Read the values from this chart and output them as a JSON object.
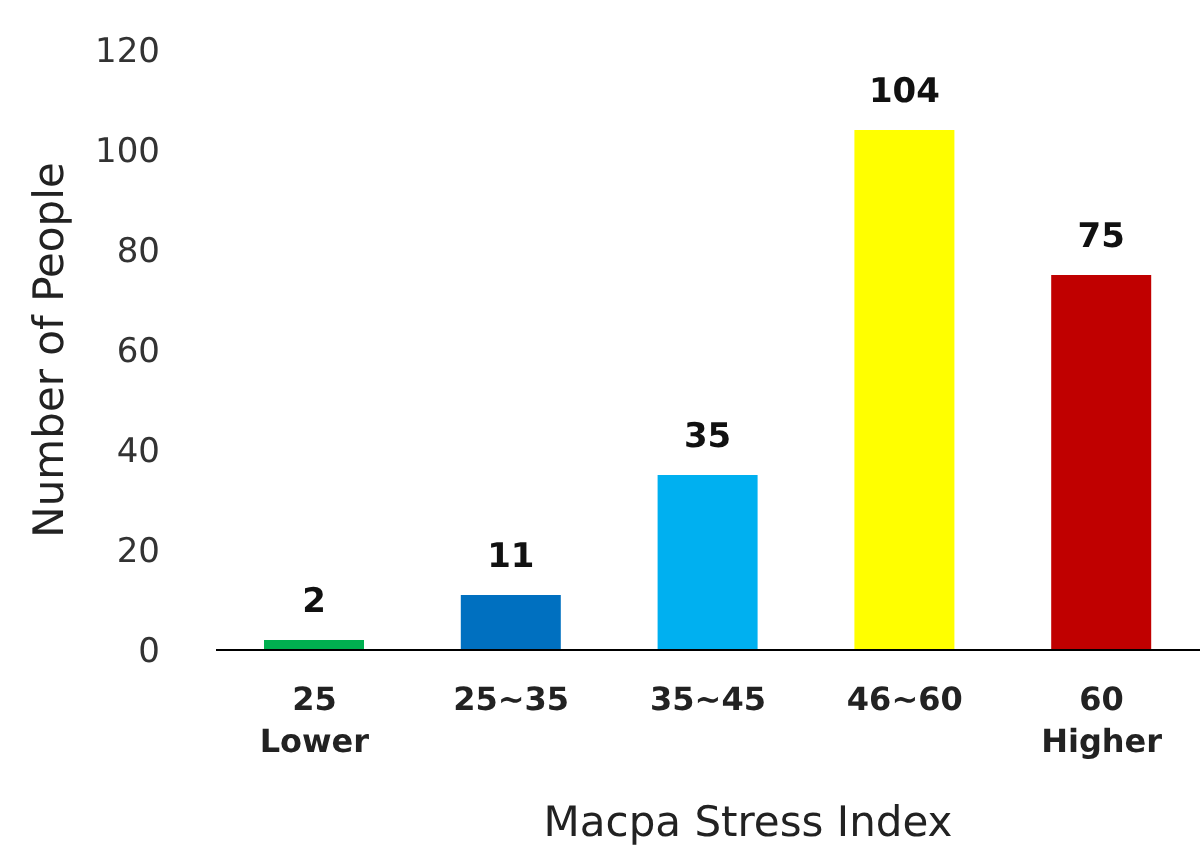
{
  "chart_data": {
    "type": "bar",
    "xlabel": "Macpa Stress Index",
    "ylabel": "Number of People",
    "categories": [
      "25\nLower",
      "25~35",
      "35~45",
      "46~60",
      "60\nHigher"
    ],
    "values": [
      2,
      11,
      35,
      104,
      75
    ],
    "colors": [
      "#00b050",
      "#0070c0",
      "#00b0f0",
      "#ffff00",
      "#c00000"
    ],
    "ylim": [
      0,
      120
    ],
    "yticks": [
      0,
      20,
      40,
      60,
      80,
      100,
      120
    ],
    "grid": false,
    "data_labels": true
  }
}
